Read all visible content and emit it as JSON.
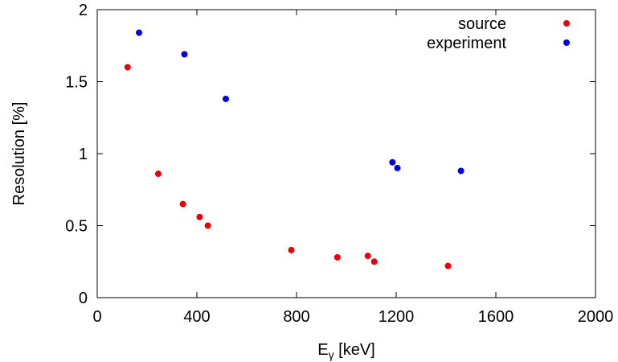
{
  "chart_data": {
    "type": "scatter",
    "xlabel_main": "E",
    "xlabel_sub": "γ",
    "xlabel_unit": " [keV]",
    "ylabel": "Resolution [%]",
    "xlim": [
      0,
      2000
    ],
    "ylim": [
      0,
      2
    ],
    "xticks": [
      0,
      400,
      800,
      1200,
      1600,
      2000
    ],
    "yticks": [
      0,
      0.5,
      1,
      1.5,
      2
    ],
    "ytick_labels": [
      "0",
      "0.5",
      "1",
      "1.5",
      "2"
    ],
    "grid": false,
    "legend_position": "top-right",
    "series": [
      {
        "name": "source",
        "color": "#e8000b",
        "points": [
          [
            122,
            1.6
          ],
          [
            245,
            0.86
          ],
          [
            344,
            0.65
          ],
          [
            411,
            0.56
          ],
          [
            444,
            0.5
          ],
          [
            779,
            0.33
          ],
          [
            964,
            0.28
          ],
          [
            1086,
            0.29
          ],
          [
            1112,
            0.25
          ],
          [
            1408,
            0.22
          ]
        ]
      },
      {
        "name": "experiment",
        "color": "#0000e6",
        "points": [
          [
            168,
            1.84
          ],
          [
            350,
            1.69
          ],
          [
            516,
            1.38
          ],
          [
            1185,
            0.94
          ],
          [
            1205,
            0.9
          ],
          [
            1460,
            0.88
          ]
        ]
      }
    ]
  }
}
